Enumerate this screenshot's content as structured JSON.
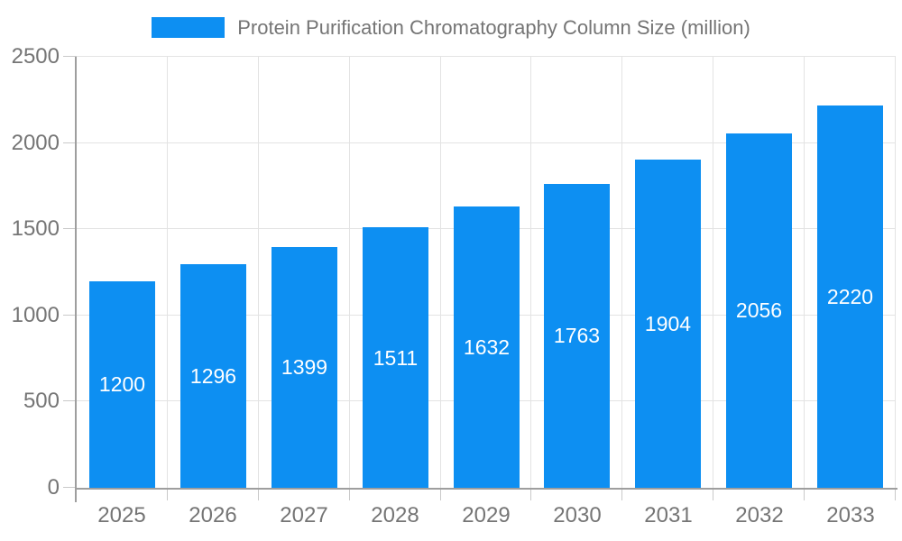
{
  "chart_data": {
    "type": "bar",
    "title": "Protein Purification Chromatography Column Size (million)",
    "categories": [
      "2025",
      "2026",
      "2027",
      "2028",
      "2029",
      "2030",
      "2031",
      "2032",
      "2033"
    ],
    "values": [
      1200,
      1296,
      1399,
      1511,
      1632,
      1763,
      1904,
      2056,
      2220
    ],
    "xlabel": "",
    "ylabel": "",
    "ylim": [
      0,
      2500
    ],
    "yticks": [
      0,
      500,
      1000,
      1500,
      2000,
      2500
    ],
    "grid": true,
    "legend_position": "top",
    "colors": {
      "bar": "#0d8ff2",
      "value_label": "#ffffff",
      "axis_line": "#9e9e9e",
      "gridline": "#e3e3e3",
      "tick": "#c9c9c9",
      "text": "#757575",
      "background": "#ffffff"
    }
  }
}
